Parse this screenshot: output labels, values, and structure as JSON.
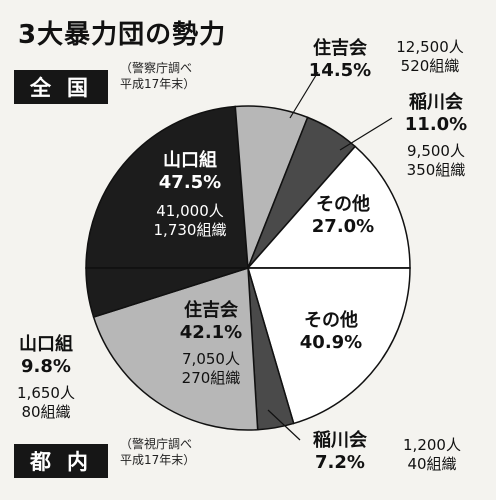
{
  "title": "3大暴力団の勢力",
  "national": {
    "badge": "全国",
    "source_line1": "（警察庁調べ",
    "source_line2": "平成17年末）"
  },
  "tokyo": {
    "badge": "都内",
    "source_line1": "（警視庁調べ",
    "source_line2": "平成17年末）"
  },
  "chart_data": [
    {
      "type": "pie",
      "region": "全国",
      "slices": [
        {
          "label": "山口組",
          "percent": 47.5,
          "percent_text": "47.5%",
          "members": "41,000人",
          "groups": "1,730組織",
          "color": "#1c1c1c"
        },
        {
          "label": "住吉会",
          "percent": 14.5,
          "percent_text": "14.5%",
          "members": "12,500人",
          "groups": "520組織",
          "color": "#b7b7b7"
        },
        {
          "label": "稲川会",
          "percent": 11.0,
          "percent_text": "11.0%",
          "members": "9,500人",
          "groups": "350組織",
          "color": "#4a4a4a"
        },
        {
          "label": "その他",
          "percent": 27.0,
          "percent_text": "27.0%",
          "color": "#ffffff"
        }
      ]
    },
    {
      "type": "pie",
      "region": "都内",
      "slices": [
        {
          "label": "その他",
          "percent": 40.9,
          "percent_text": "40.9%",
          "color": "#ffffff"
        },
        {
          "label": "稲川会",
          "percent": 7.2,
          "percent_text": "7.2%",
          "members": "1,200人",
          "groups": "40組織",
          "color": "#4a4a4a"
        },
        {
          "label": "住吉会",
          "percent": 42.1,
          "percent_text": "42.1%",
          "members": "7,050人",
          "groups": "270組織",
          "color": "#b7b7b7"
        },
        {
          "label": "山口組",
          "percent": 9.8,
          "percent_text": "9.8%",
          "members": "1,650人",
          "groups": "80組織",
          "color": "#1c1c1c"
        }
      ]
    }
  ]
}
